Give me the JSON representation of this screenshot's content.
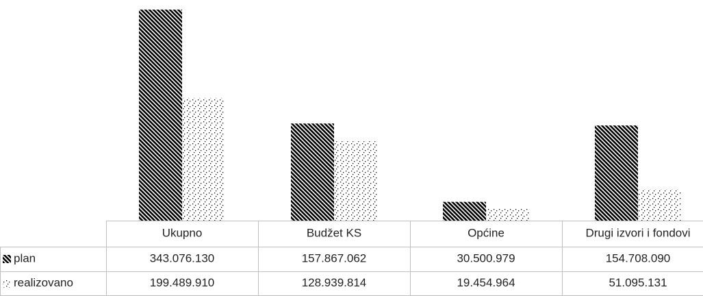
{
  "chart_data": {
    "type": "bar",
    "categories": [
      "Ukupno",
      "Budžet KS",
      "Općine",
      "Drugi izvori i fondovi"
    ],
    "series": [
      {
        "name": "plan",
        "color": "#000000",
        "values": [
          343076130,
          157867062,
          30500979,
          154708090
        ],
        "value_labels": [
          "343.076.130",
          "157.867.062",
          "30.500.979",
          "154.708.090"
        ]
      },
      {
        "name": "realizovano",
        "color": "#000000",
        "values": [
          199489910,
          128939814,
          19454964,
          51095131
        ],
        "value_labels": [
          "199.489.910",
          "128.939.814",
          "19.454.964",
          "51.095.131"
        ]
      }
    ]
  }
}
